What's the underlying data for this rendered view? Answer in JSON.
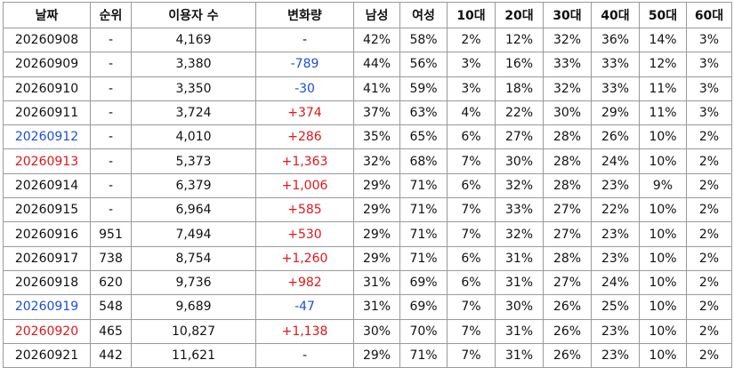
{
  "table": {
    "header": [
      "날짜",
      "순위",
      "이용자 수",
      "변화량",
      "남성",
      "여성",
      "10대",
      "20대",
      "30대",
      "40대",
      "50대",
      "60대"
    ],
    "rows": [
      [
        "20260908",
        "-",
        "4,169",
        "-",
        "42%",
        "58%",
        "2%",
        "12%",
        "32%",
        "36%",
        "14%",
        "3%"
      ],
      [
        "20260909",
        "-",
        "3,380",
        "-789",
        "44%",
        "56%",
        "3%",
        "16%",
        "33%",
        "33%",
        "12%",
        "3%"
      ],
      [
        "20260910",
        "-",
        "3,350",
        "-30",
        "41%",
        "59%",
        "3%",
        "18%",
        "32%",
        "33%",
        "11%",
        "3%"
      ],
      [
        "20260911",
        "-",
        "3,724",
        "+374",
        "37%",
        "63%",
        "4%",
        "22%",
        "30%",
        "29%",
        "11%",
        "3%"
      ],
      [
        "20260912",
        "-",
        "4,010",
        "+286",
        "35%",
        "65%",
        "6%",
        "27%",
        "28%",
        "26%",
        "10%",
        "2%"
      ],
      [
        "20260913",
        "-",
        "5,373",
        "+1,363",
        "32%",
        "68%",
        "7%",
        "30%",
        "28%",
        "24%",
        "10%",
        "2%"
      ],
      [
        "20260914",
        "-",
        "6,379",
        "+1,006",
        "29%",
        "71%",
        "6%",
        "32%",
        "28%",
        "23%",
        "9%",
        "2%"
      ],
      [
        "20260915",
        "-",
        "6,964",
        "+585",
        "29%",
        "71%",
        "7%",
        "33%",
        "27%",
        "22%",
        "10%",
        "2%"
      ],
      [
        "20260916",
        "951",
        "7,494",
        "+530",
        "29%",
        "71%",
        "7%",
        "32%",
        "27%",
        "23%",
        "10%",
        "2%"
      ],
      [
        "20260917",
        "738",
        "8,754",
        "+1,260",
        "29%",
        "71%",
        "6%",
        "31%",
        "28%",
        "23%",
        "10%",
        "2%"
      ],
      [
        "20260918",
        "620",
        "9,736",
        "+982",
        "31%",
        "69%",
        "6%",
        "31%",
        "27%",
        "24%",
        "10%",
        "2%"
      ],
      [
        "20260919",
        "548",
        "9,689",
        "-47",
        "31%",
        "69%",
        "7%",
        "30%",
        "26%",
        "25%",
        "10%",
        "2%"
      ],
      [
        "20260920",
        "465",
        "10,827",
        "+1,138",
        "30%",
        "70%",
        "7%",
        "31%",
        "26%",
        "23%",
        "10%",
        "2%"
      ],
      [
        "20260921",
        "442",
        "11,621",
        "-",
        "29%",
        "71%",
        "7%",
        "31%",
        "26%",
        "23%",
        "10%",
        "2%"
      ]
    ]
  }
}
